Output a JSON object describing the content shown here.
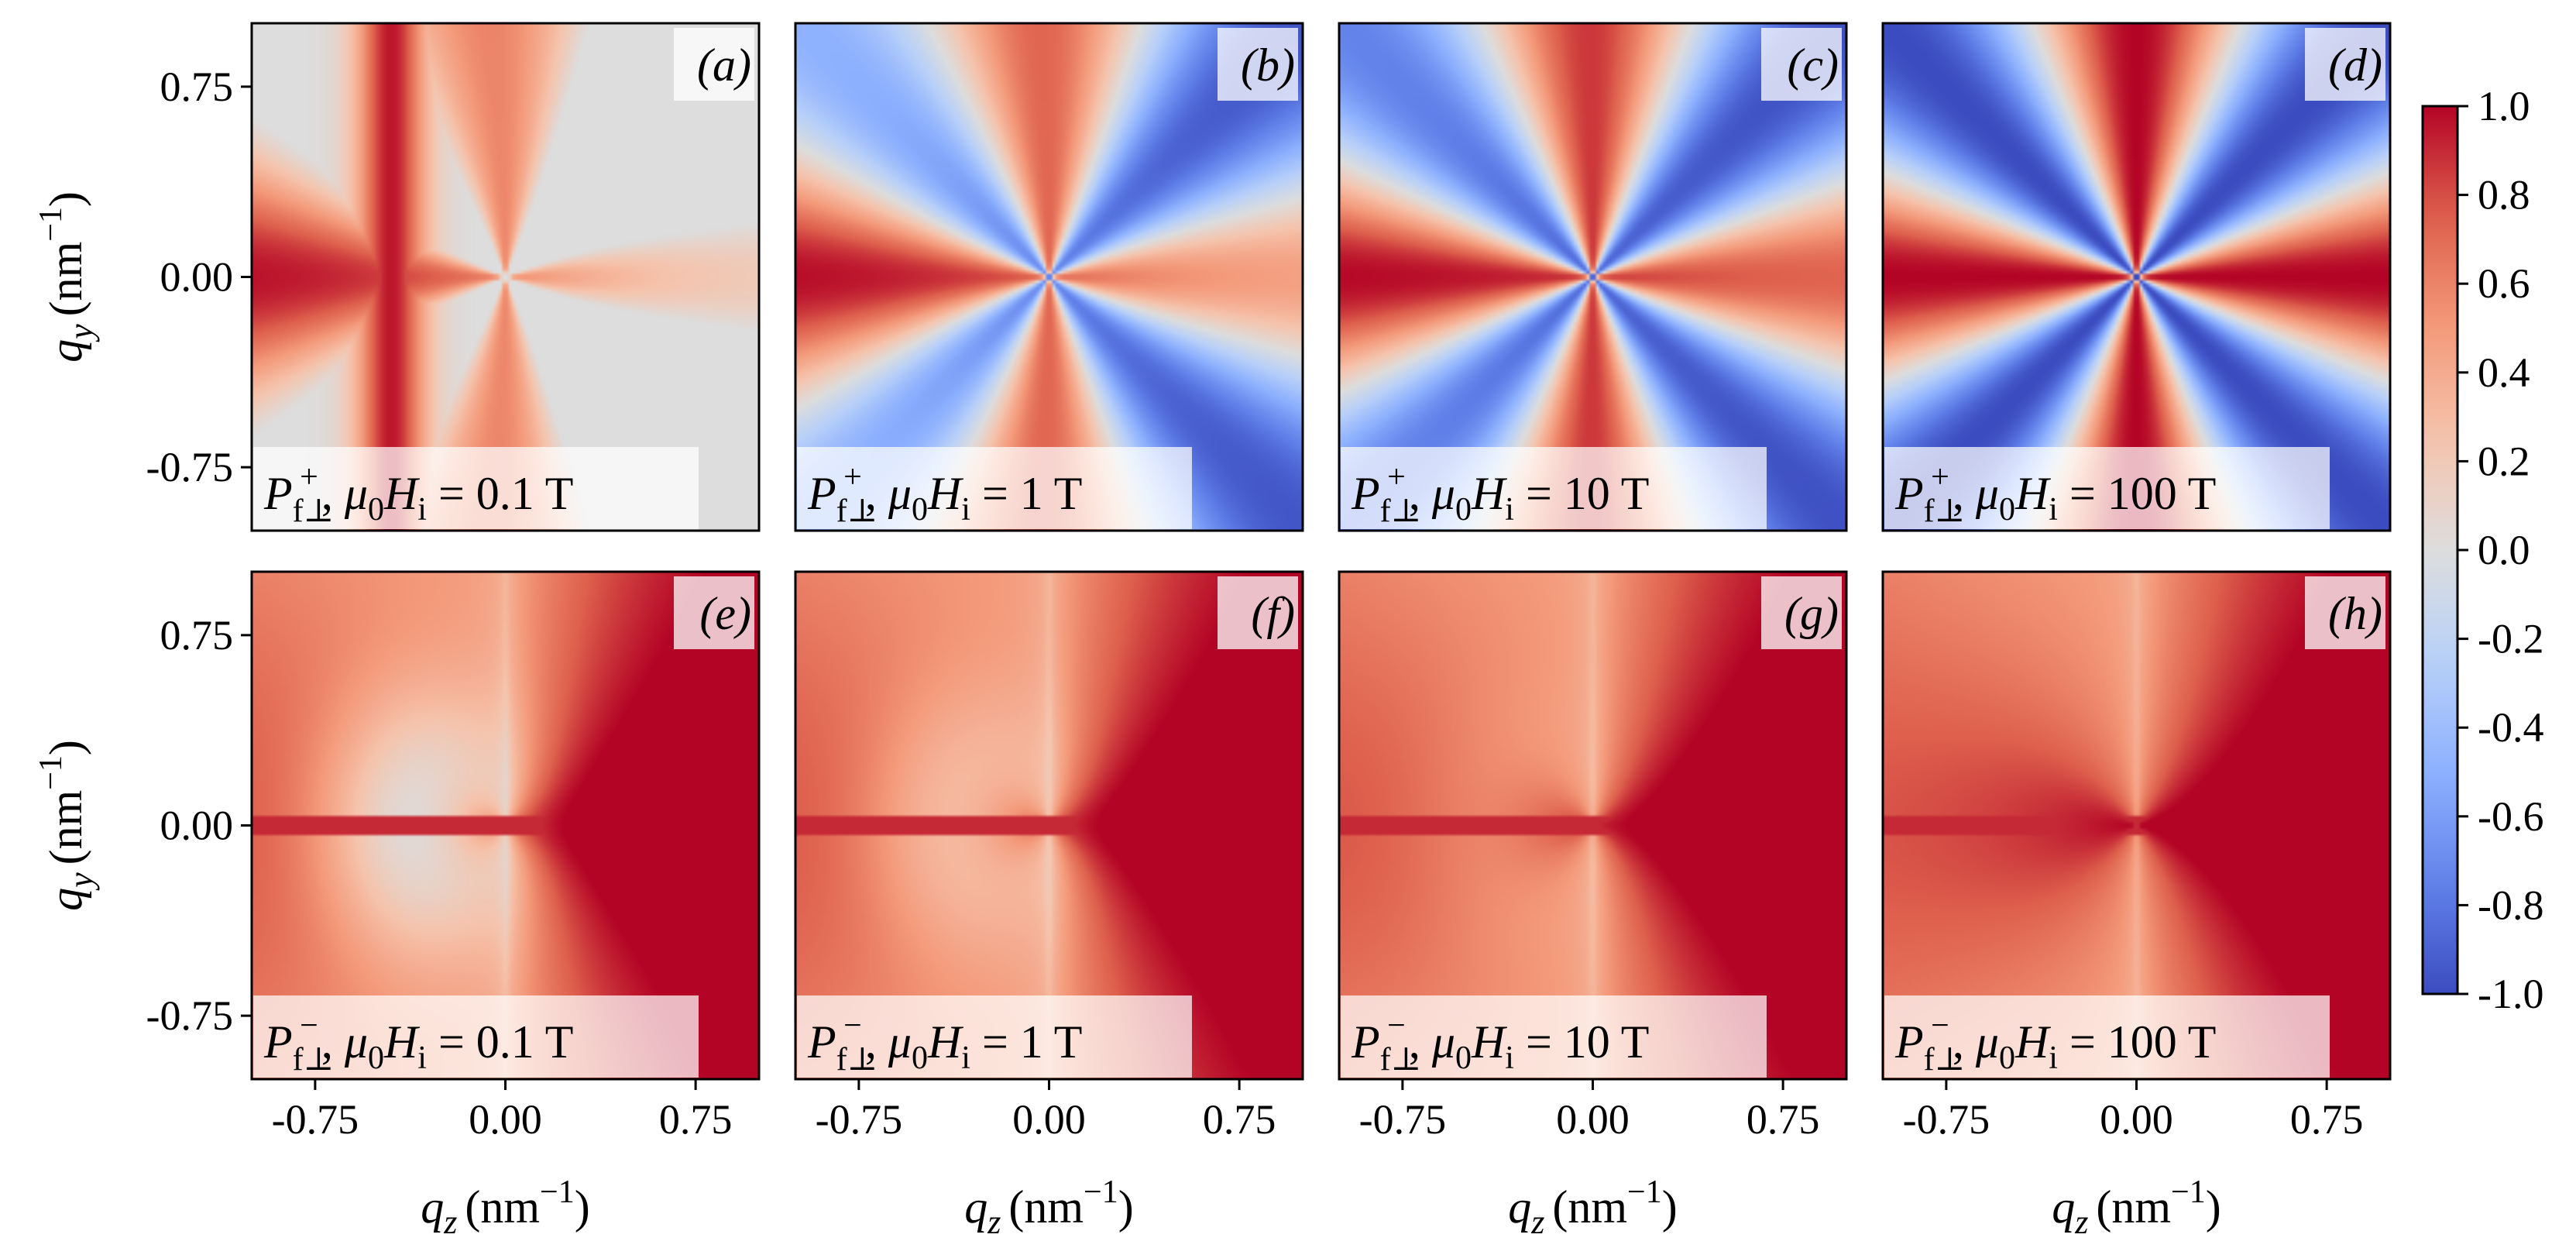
{
  "chart_data": {
    "type": "heatmap",
    "layout": "2 rows x 4 columns",
    "colormap": "coolwarm",
    "colorbar": {
      "range": [
        -1.0,
        1.0
      ],
      "ticks": [
        "1.0",
        "0.8",
        "0.6",
        "0.4",
        "0.2",
        "0.0",
        "-0.2",
        "-0.4",
        "-0.6",
        "-0.8",
        "-1.0"
      ],
      "placement": "right"
    },
    "x_axis": {
      "label": "q_z (nm⁻¹)",
      "label_var": "q",
      "label_sub": "z",
      "label_unit": "(nm",
      "label_exp": "−1",
      "label_close": ")",
      "range": [
        -1.0,
        1.0
      ],
      "ticks": [
        "-0.75",
        "0.00",
        "0.75"
      ]
    },
    "y_axis": {
      "label": "q_y (nm⁻¹)",
      "label_var": "q",
      "label_sub": "y",
      "label_unit": "(nm",
      "label_exp": "−1",
      "label_close": ")",
      "range": [
        -1.0,
        1.0
      ],
      "ticks": [
        "0.75",
        "0.00",
        "-0.75"
      ]
    },
    "grid": false,
    "panels": [
      {
        "id": "a",
        "label": "(a)",
        "sign": "+",
        "field_T": 0.1,
        "annotation": "P_f⊥^+, μ0Hi = 0.1 T",
        "ann_sup": "+",
        "ann_value": " = 0.1 T"
      },
      {
        "id": "b",
        "label": "(b)",
        "sign": "+",
        "field_T": 1,
        "annotation": "P_f⊥^+, μ0Hi = 1 T",
        "ann_sup": "+",
        "ann_value": " = 1 T"
      },
      {
        "id": "c",
        "label": "(c)",
        "sign": "+",
        "field_T": 10,
        "annotation": "P_f⊥^+, μ0Hi = 10 T",
        "ann_sup": "+",
        "ann_value": " = 10 T"
      },
      {
        "id": "d",
        "label": "(d)",
        "sign": "+",
        "field_T": 100,
        "annotation": "P_f⊥^+, μ0Hi = 100 T",
        "ann_sup": "+",
        "ann_value": " = 100 T"
      },
      {
        "id": "e",
        "label": "(e)",
        "sign": "−",
        "field_T": 0.1,
        "annotation": "P_f⊥^−, μ0Hi = 0.1 T",
        "ann_sup": "−",
        "ann_value": " = 0.1 T"
      },
      {
        "id": "f",
        "label": "(f)",
        "sign": "−",
        "field_T": 1,
        "annotation": "P_f⊥^−, μ0Hi = 1 T",
        "ann_sup": "−",
        "ann_value": " = 1 T"
      },
      {
        "id": "g",
        "label": "(g)",
        "sign": "−",
        "field_T": 10,
        "annotation": "P_f⊥^−, μ0Hi = 10 T",
        "ann_sup": "−",
        "ann_value": " = 10 T"
      },
      {
        "id": "h",
        "label": "(h)",
        "sign": "−",
        "field_T": 100,
        "annotation": "P_f⊥^−, μ0Hi = 100 T",
        "ann_sup": "−",
        "ann_value": " = 100 T"
      }
    ],
    "colors": {
      "cmap_low": "#3b4cc0",
      "cmap_mid": "#dddddd",
      "cmap_high": "#b40426"
    }
  }
}
